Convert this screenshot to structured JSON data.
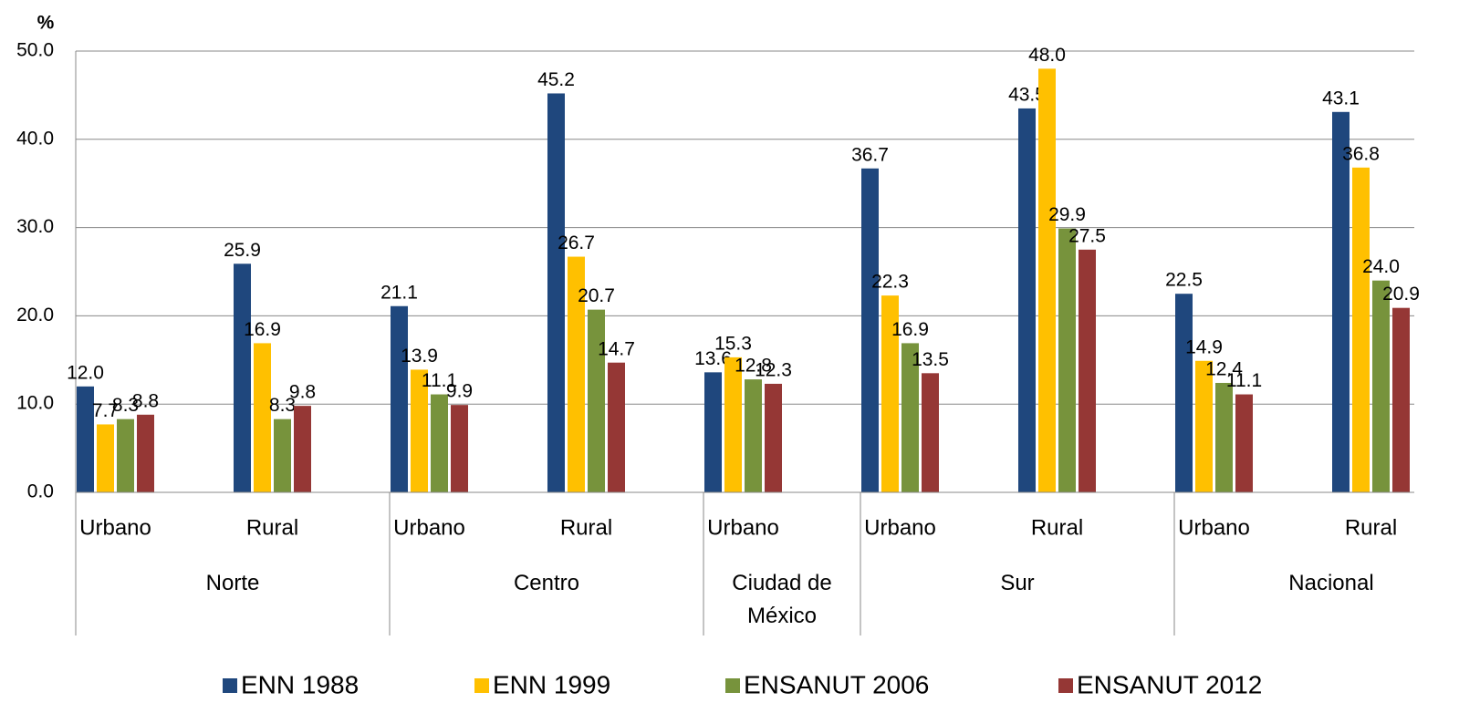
{
  "chart_data": {
    "type": "bar",
    "y_label": "%",
    "groups": [
      {
        "name": "Norte",
        "categories": [
          "Urbano",
          "Rural"
        ]
      },
      {
        "name": "Centro",
        "categories": [
          "Urbano",
          "Rural"
        ]
      },
      {
        "name": "Ciudad de México",
        "categories": [
          "Urbano"
        ]
      },
      {
        "name": "Sur",
        "categories": [
          "Urbano",
          "Rural"
        ]
      },
      {
        "name": "Nacional",
        "categories": [
          "Urbano",
          "Rural"
        ]
      }
    ],
    "series": [
      {
        "name": "ENN 1988",
        "color": "#1f477d",
        "values": [
          12.0,
          25.9,
          21.1,
          45.2,
          13.6,
          36.7,
          43.5,
          22.5,
          43.1
        ],
        "value_labels": [
          "12.0",
          "25.9",
          "21.1",
          "45.2",
          "13.6",
          "36.7",
          "43.5",
          "22.5",
          "43.1"
        ]
      },
      {
        "name": "ENN 1999",
        "color": "#ffc000",
        "values": [
          7.7,
          16.9,
          13.9,
          26.7,
          15.3,
          22.3,
          48.0,
          14.9,
          36.8
        ],
        "value_labels": [
          "7.7",
          "16.9",
          "13.9",
          "26.7",
          "15.3",
          "22.3",
          "48.0",
          "14.9",
          "36.8"
        ]
      },
      {
        "name": "ENSANUT 2006",
        "color": "#77933c",
        "values": [
          8.3,
          8.3,
          11.1,
          20.7,
          12.8,
          16.9,
          29.9,
          12.4,
          24.0
        ],
        "value_labels": [
          "8.3",
          "8.3",
          "11.1",
          "20.7",
          "12.8",
          "16.9",
          "29.9",
          "12.4",
          "24.0"
        ]
      },
      {
        "name": "ENSANUT 2012",
        "color": "#953735",
        "values": [
          8.8,
          9.8,
          9.9,
          14.7,
          12.3,
          13.5,
          27.5,
          11.1,
          20.9
        ],
        "value_labels": [
          "8.8",
          "9.8",
          "9.9",
          "14.7",
          "12.3",
          "13.5",
          "27.5",
          "11.1",
          "20.9"
        ]
      }
    ],
    "ylim": [
      0,
      50
    ],
    "yticks": [
      {
        "value": 0,
        "label": "0.0"
      },
      {
        "value": 10,
        "label": "10.0"
      },
      {
        "value": 20,
        "label": "20.0"
      },
      {
        "value": 30,
        "label": "30.0"
      },
      {
        "value": 40,
        "label": "40.0"
      },
      {
        "value": 50,
        "label": "50.0"
      }
    ],
    "grid": true,
    "legend": "bottom"
  }
}
